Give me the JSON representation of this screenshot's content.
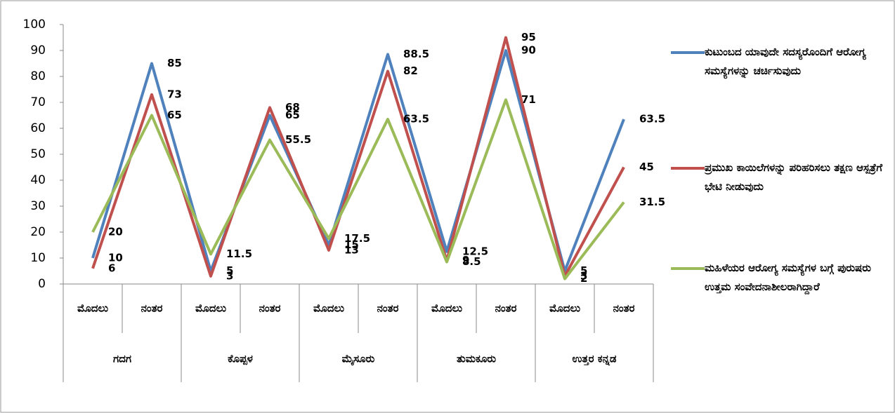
{
  "chart_data": {
    "type": "line",
    "categories": [
      "ಮೊದಲು",
      "ನಂತರ",
      "ಮೊದಲು",
      "ನಂತರ",
      "ಮೊದಲು",
      "ನಂತರ",
      "ಮೊದಲು",
      "ನಂತರ",
      "ಮೊದಲು",
      "ನಂತರ"
    ],
    "groups": [
      "ಗದಗ",
      "ಕೊಪ್ಪಳ",
      "ಮೈಸೂರು",
      "ತುಮಕೂರು",
      "ಉತ್ತರ ಕನ್ನಡ"
    ],
    "series": [
      {
        "name": "ಕುಟುಂಬದ ಯಾವುದೇ ಸದಸ್ಯರೊಂದಿಗೆ ಆರೋಗ್ಯ ಸಮಸ್ಯೆಗಳನ್ನು ಚರ್ಚಿಸುವುದು",
        "color": "#4f81bd",
        "values": [
          10,
          85,
          5,
          65,
          15,
          88.5,
          12.5,
          90,
          5,
          63.5
        ]
      },
      {
        "name": "ಪ್ರಮುಖ ಕಾಯಿಲೆಗಳನ್ನು ಪರಿಹರಿಸಲು ತಕ್ಷಣ ಆಸ್ಪತ್ರೆಗೆ ಭೇಟಿ ನೀಡುವುದು",
        "color": "#c0504d",
        "values": [
          6,
          73,
          3,
          68,
          13,
          82,
          9,
          95,
          3,
          45
        ]
      },
      {
        "name": "ಮಹಿಳೆಯರ ಆರೋಗ್ಯ ಸಮಸ್ಯೆಗಳ ಬಗ್ಗೆ ಪುರುಷರು ಉತ್ತಮ ಸಂವೇದನಾಶೀಲರಾಗಿದ್ದಾರೆ",
        "color": "#9bbb59",
        "values": [
          20,
          65,
          11.5,
          55.5,
          17.5,
          63.5,
          8.5,
          71,
          2,
          31.5
        ]
      }
    ],
    "ylim": [
      0,
      100
    ],
    "yticks": [
      0,
      10,
      20,
      30,
      40,
      50,
      60,
      70,
      80,
      90,
      100
    ],
    "grid": false,
    "legend": "right"
  }
}
